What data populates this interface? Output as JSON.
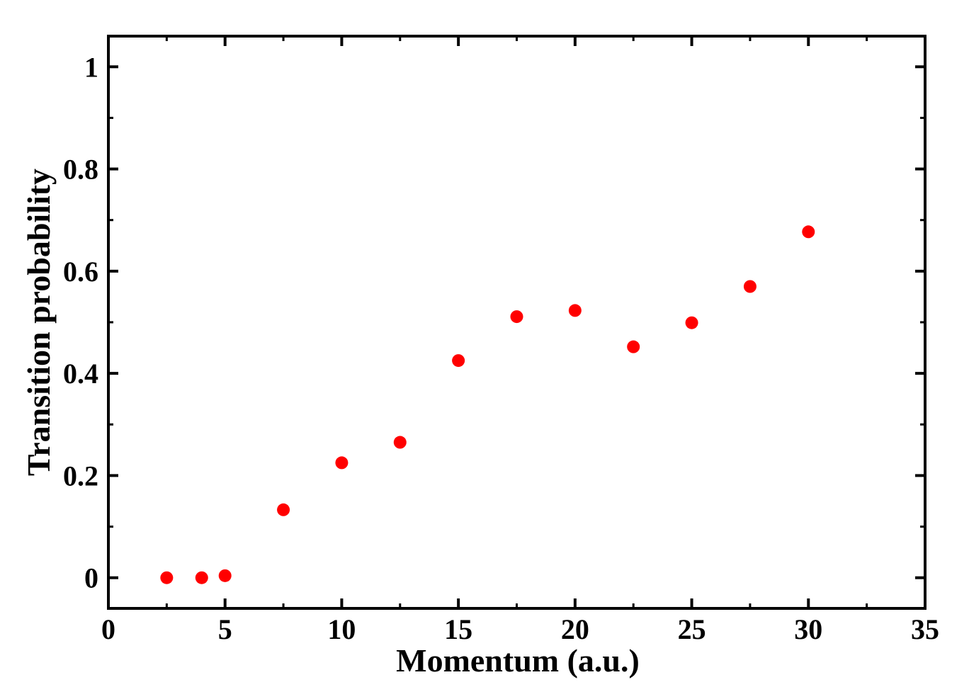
{
  "chart_data": {
    "type": "scatter",
    "title": "",
    "xlabel": "Momentum (a.u.)",
    "ylabel": "Transition probability",
    "xlim": [
      0,
      35
    ],
    "ylim": [
      -0.06,
      1.06
    ],
    "x_ticks": [
      0,
      5,
      10,
      15,
      20,
      25,
      30,
      35
    ],
    "x_tick_labels": [
      "0",
      "5",
      "10",
      "15",
      "20",
      "25",
      "30",
      "35"
    ],
    "y_ticks": [
      0,
      0.2,
      0.4,
      0.6,
      0.8,
      1
    ],
    "y_tick_labels": [
      "0",
      "0.2",
      "0.4",
      "0.6",
      "0.8",
      "1"
    ],
    "grid": false,
    "marker_color": "#ff0000",
    "series": [
      {
        "x": [
          2.5,
          4,
          5,
          7.5,
          10,
          12.5,
          15,
          17.5,
          20,
          22.5,
          25,
          27.5,
          30
        ],
        "y": [
          0.0,
          0.0,
          0.004,
          0.133,
          0.225,
          0.265,
          0.425,
          0.511,
          0.523,
          0.452,
          0.499,
          0.57,
          0.677
        ]
      }
    ]
  }
}
